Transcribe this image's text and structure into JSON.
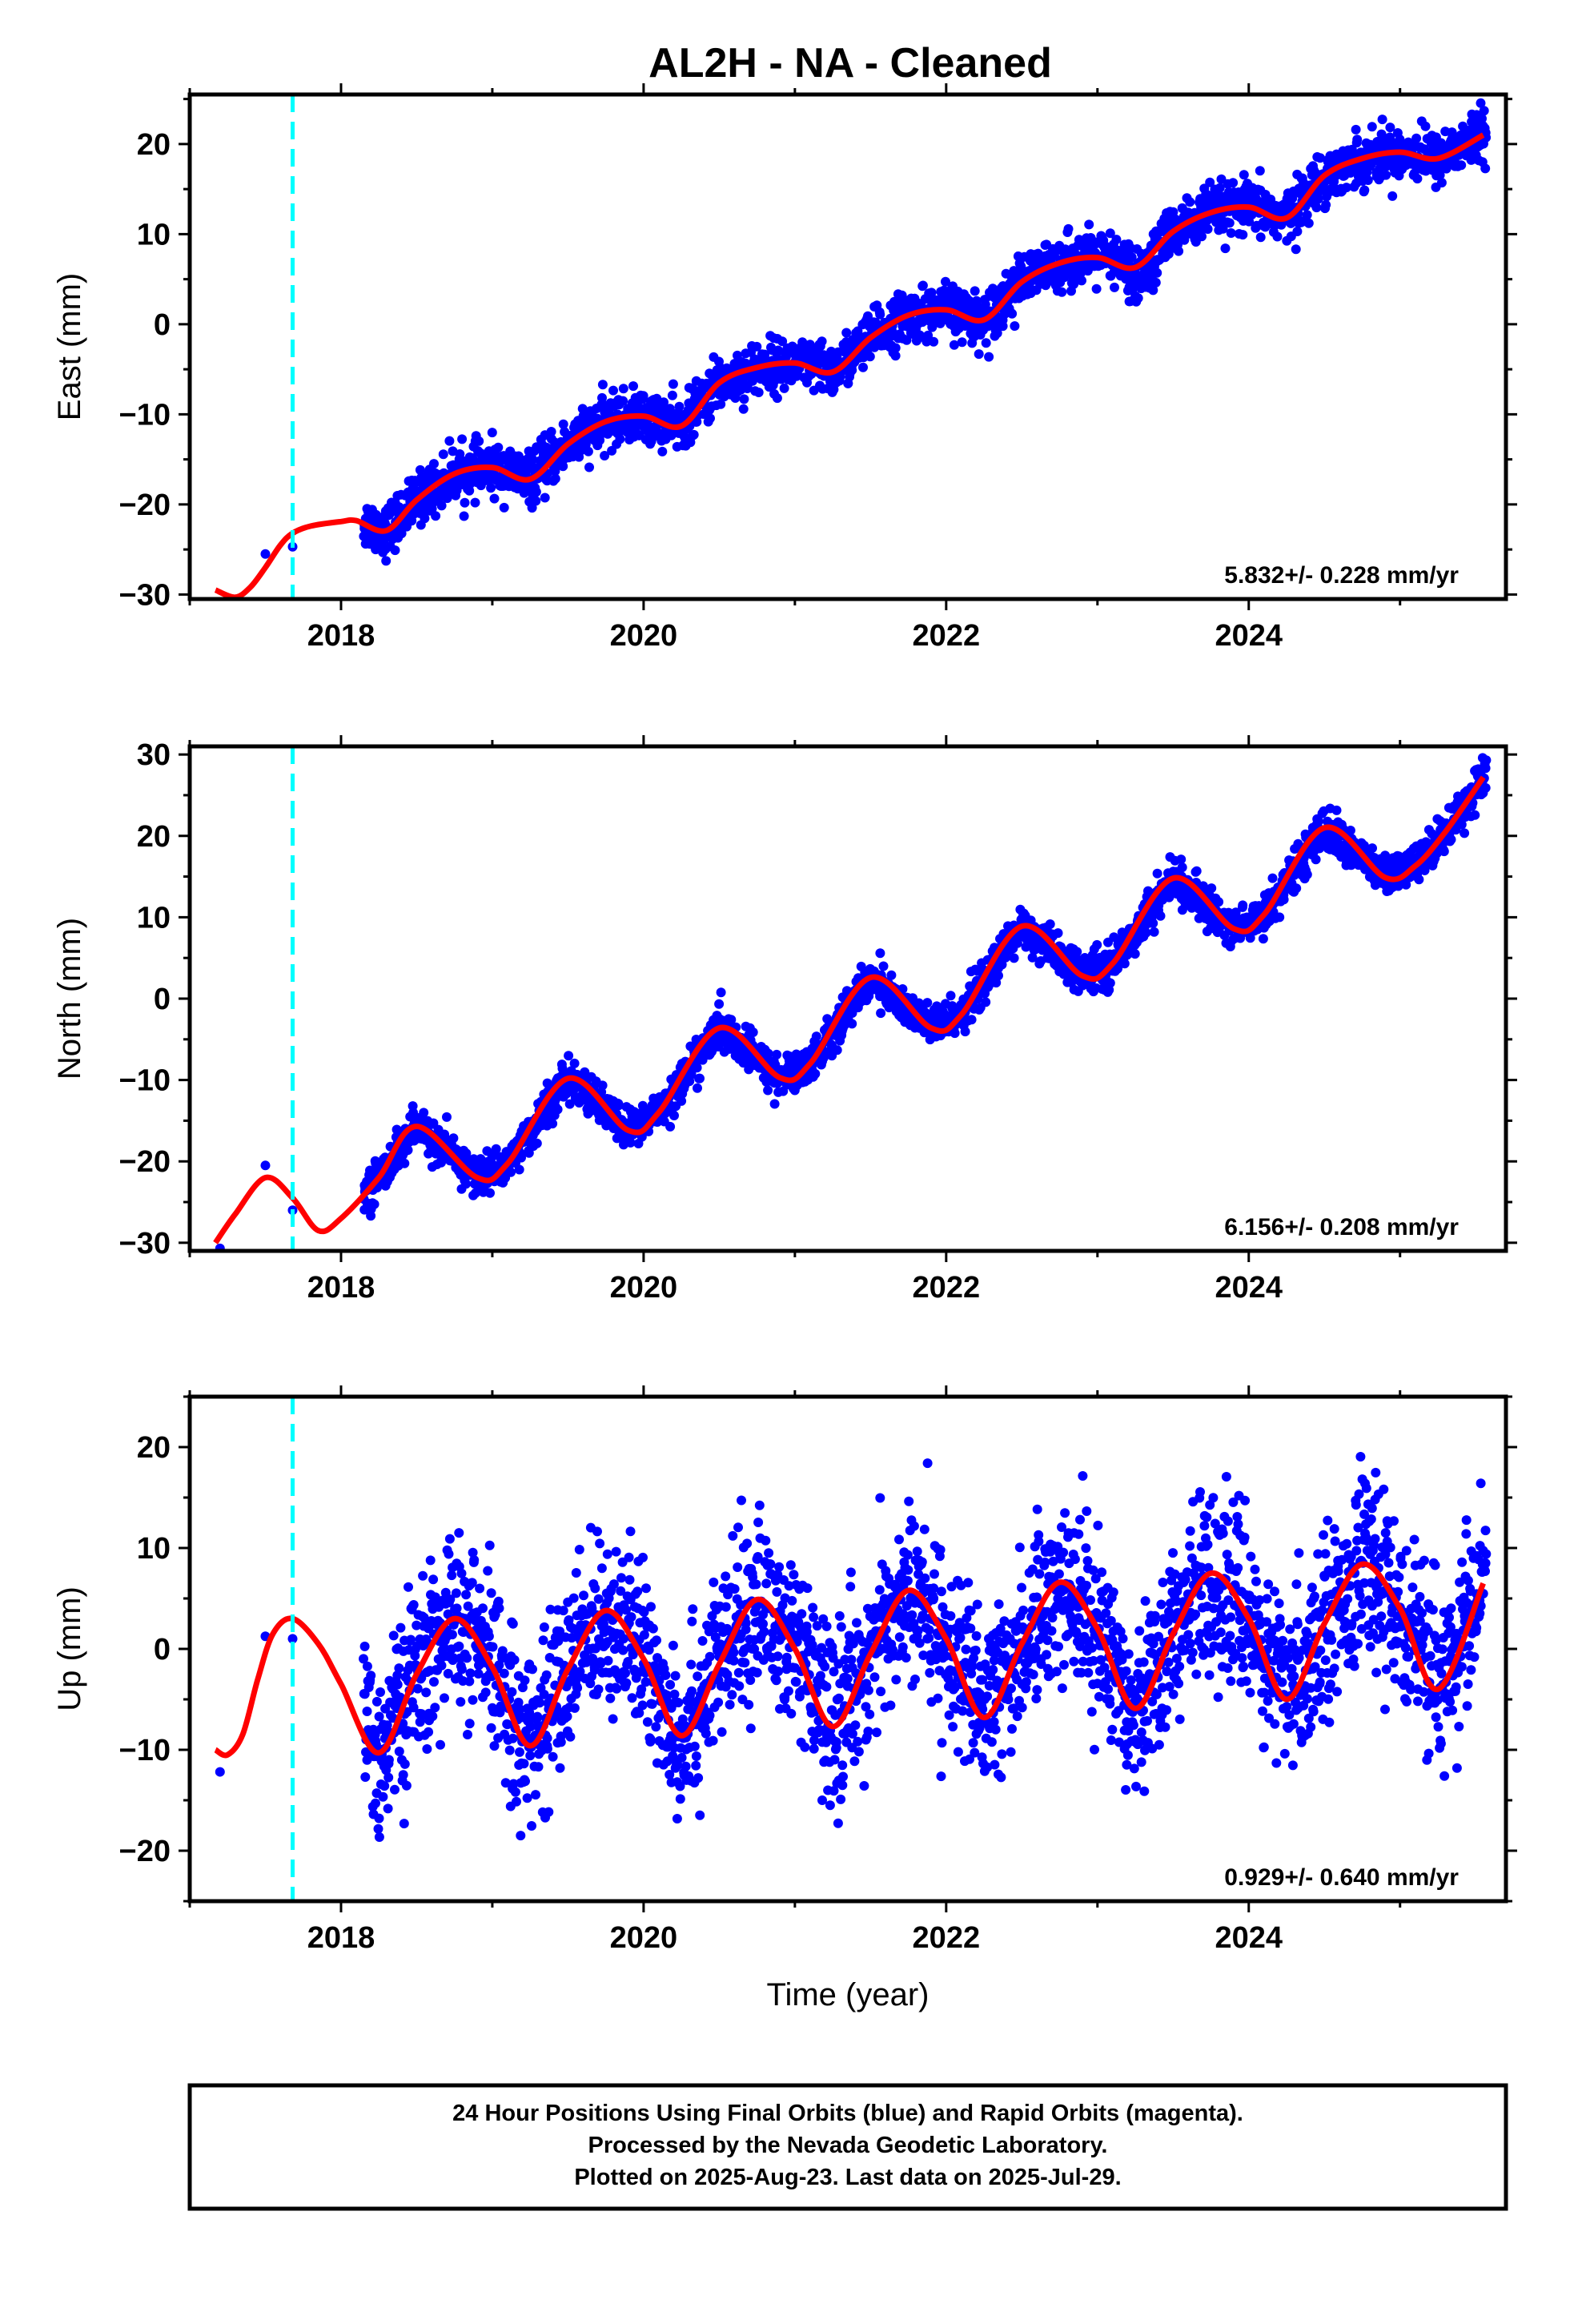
{
  "figure": {
    "title": "AL2H  - NA - Cleaned",
    "footer_lines": [
      "24 Hour Positions Using Final Orbits (blue) and Rapid Orbits (magenta).",
      "Processed by the Nevada Geodetic Laboratory.",
      "Plotted on 2025-Aug-23. Last data on 2025-Jul-29."
    ],
    "colors": {
      "points": "#0000ff",
      "fit": "#ff0000",
      "event_line": "#00ffff",
      "frame": "#000000"
    }
  },
  "chart_data": [
    {
      "type": "scatter",
      "ylabel": "East (mm)",
      "xlabel": "",
      "xlim": [
        2017.0,
        2025.7
      ],
      "ylim": [
        -30.5,
        25.5
      ],
      "x_ticks": [
        2018,
        2020,
        2022,
        2024
      ],
      "y_ticks": [
        -30,
        -20,
        -10,
        0,
        10,
        20
      ],
      "event_x": 2017.68,
      "annotation": "5.832+/- 0.228 mm/yr",
      "fit_x": [
        2017.17,
        2017.3,
        2017.4,
        2017.5,
        2017.6,
        2017.68,
        2017.8,
        2018.0,
        2018.1,
        2018.3,
        2018.5,
        2018.75,
        2019.0,
        2019.25,
        2019.5,
        2019.75,
        2020.0,
        2020.25,
        2020.5,
        2020.75,
        2021.0,
        2021.25,
        2021.5,
        2021.75,
        2022.0,
        2022.25,
        2022.5,
        2022.75,
        2023.0,
        2023.25,
        2023.5,
        2023.75,
        2024.0,
        2024.25,
        2024.5,
        2024.75,
        2025.0,
        2025.25,
        2025.55
      ],
      "fit_y": [
        -29.5,
        -30.3,
        -29.2,
        -27,
        -24.5,
        -23.2,
        -22.4,
        -21.9,
        -21.8,
        -22.9,
        -19.5,
        -16.6,
        -15.9,
        -17.2,
        -13.3,
        -10.8,
        -10.2,
        -11.3,
        -6.5,
        -4.8,
        -4.3,
        -5.3,
        -1.5,
        1.0,
        1.6,
        0.5,
        4.7,
        6.8,
        7.4,
        6.3,
        10.3,
        12.4,
        13.0,
        11.8,
        16.5,
        18.4,
        19.1,
        18.4,
        21.0
      ]
    },
    {
      "type": "scatter",
      "ylabel": "North (mm)",
      "xlabel": "",
      "xlim": [
        2017.0,
        2025.7
      ],
      "ylim": [
        -31.0,
        31.0
      ],
      "x_ticks": [
        2018,
        2020,
        2022,
        2024
      ],
      "y_ticks": [
        -30,
        -20,
        -10,
        0,
        10,
        20,
        30
      ],
      "event_x": 2017.68,
      "annotation": "6.156+/- 0.208 mm/yr",
      "fit_x": [
        2017.17,
        2017.3,
        2017.5,
        2017.68,
        2017.85,
        2018.0,
        2018.25,
        2018.5,
        2018.9,
        2019.1,
        2019.5,
        2019.9,
        2020.1,
        2020.5,
        2020.9,
        2021.1,
        2021.5,
        2021.9,
        2022.1,
        2022.5,
        2022.9,
        2023.1,
        2023.5,
        2023.9,
        2024.1,
        2024.5,
        2024.9,
        2025.1,
        2025.3,
        2025.55
      ],
      "fit_y": [
        -30,
        -26.5,
        -22,
        -24.5,
        -28.5,
        -27,
        -22,
        -15.7,
        -22,
        -20.3,
        -9.8,
        -16.2,
        -14,
        -3.6,
        -9.7,
        -8,
        2.6,
        -3.6,
        -2,
        8.9,
        2.8,
        4.3,
        14.8,
        8.6,
        10.3,
        21,
        14.9,
        16.3,
        20.5,
        27.2
      ]
    },
    {
      "type": "scatter",
      "ylabel": "Up (mm)",
      "xlabel": "Time (year)",
      "xlim": [
        2017.0,
        2025.7
      ],
      "ylim": [
        -25.0,
        25.0
      ],
      "x_ticks": [
        2018,
        2020,
        2022,
        2024
      ],
      "y_ticks": [
        -20,
        -10,
        0,
        10,
        20
      ],
      "event_x": 2017.68,
      "annotation": "0.929+/- 0.640 mm/yr",
      "fit_x": [
        2017.17,
        2017.25,
        2017.35,
        2017.45,
        2017.55,
        2017.68,
        2017.85,
        2018.0,
        2018.25,
        2018.5,
        2018.75,
        2019.0,
        2019.25,
        2019.5,
        2019.75,
        2020.0,
        2020.25,
        2020.5,
        2020.75,
        2021.0,
        2021.25,
        2021.5,
        2021.75,
        2022.0,
        2022.25,
        2022.5,
        2022.75,
        2023.0,
        2023.25,
        2023.5,
        2023.75,
        2024.0,
        2024.25,
        2024.5,
        2024.75,
        2025.0,
        2025.25,
        2025.55
      ],
      "fit_y": [
        -10,
        -10.5,
        -8.5,
        -3,
        1.5,
        3.0,
        0.5,
        -3.5,
        -10.3,
        -2.5,
        3.0,
        -1.8,
        -9.6,
        -2.0,
        3.8,
        -1.0,
        -8.6,
        -1.5,
        4.9,
        0.0,
        -7.7,
        -0.5,
        5.8,
        1.0,
        -6.8,
        0.5,
        6.6,
        2.0,
        -5.9,
        1.5,
        7.5,
        3.0,
        -5.0,
        2.5,
        8.4,
        4.0,
        -4.0,
        6.5
      ]
    }
  ]
}
